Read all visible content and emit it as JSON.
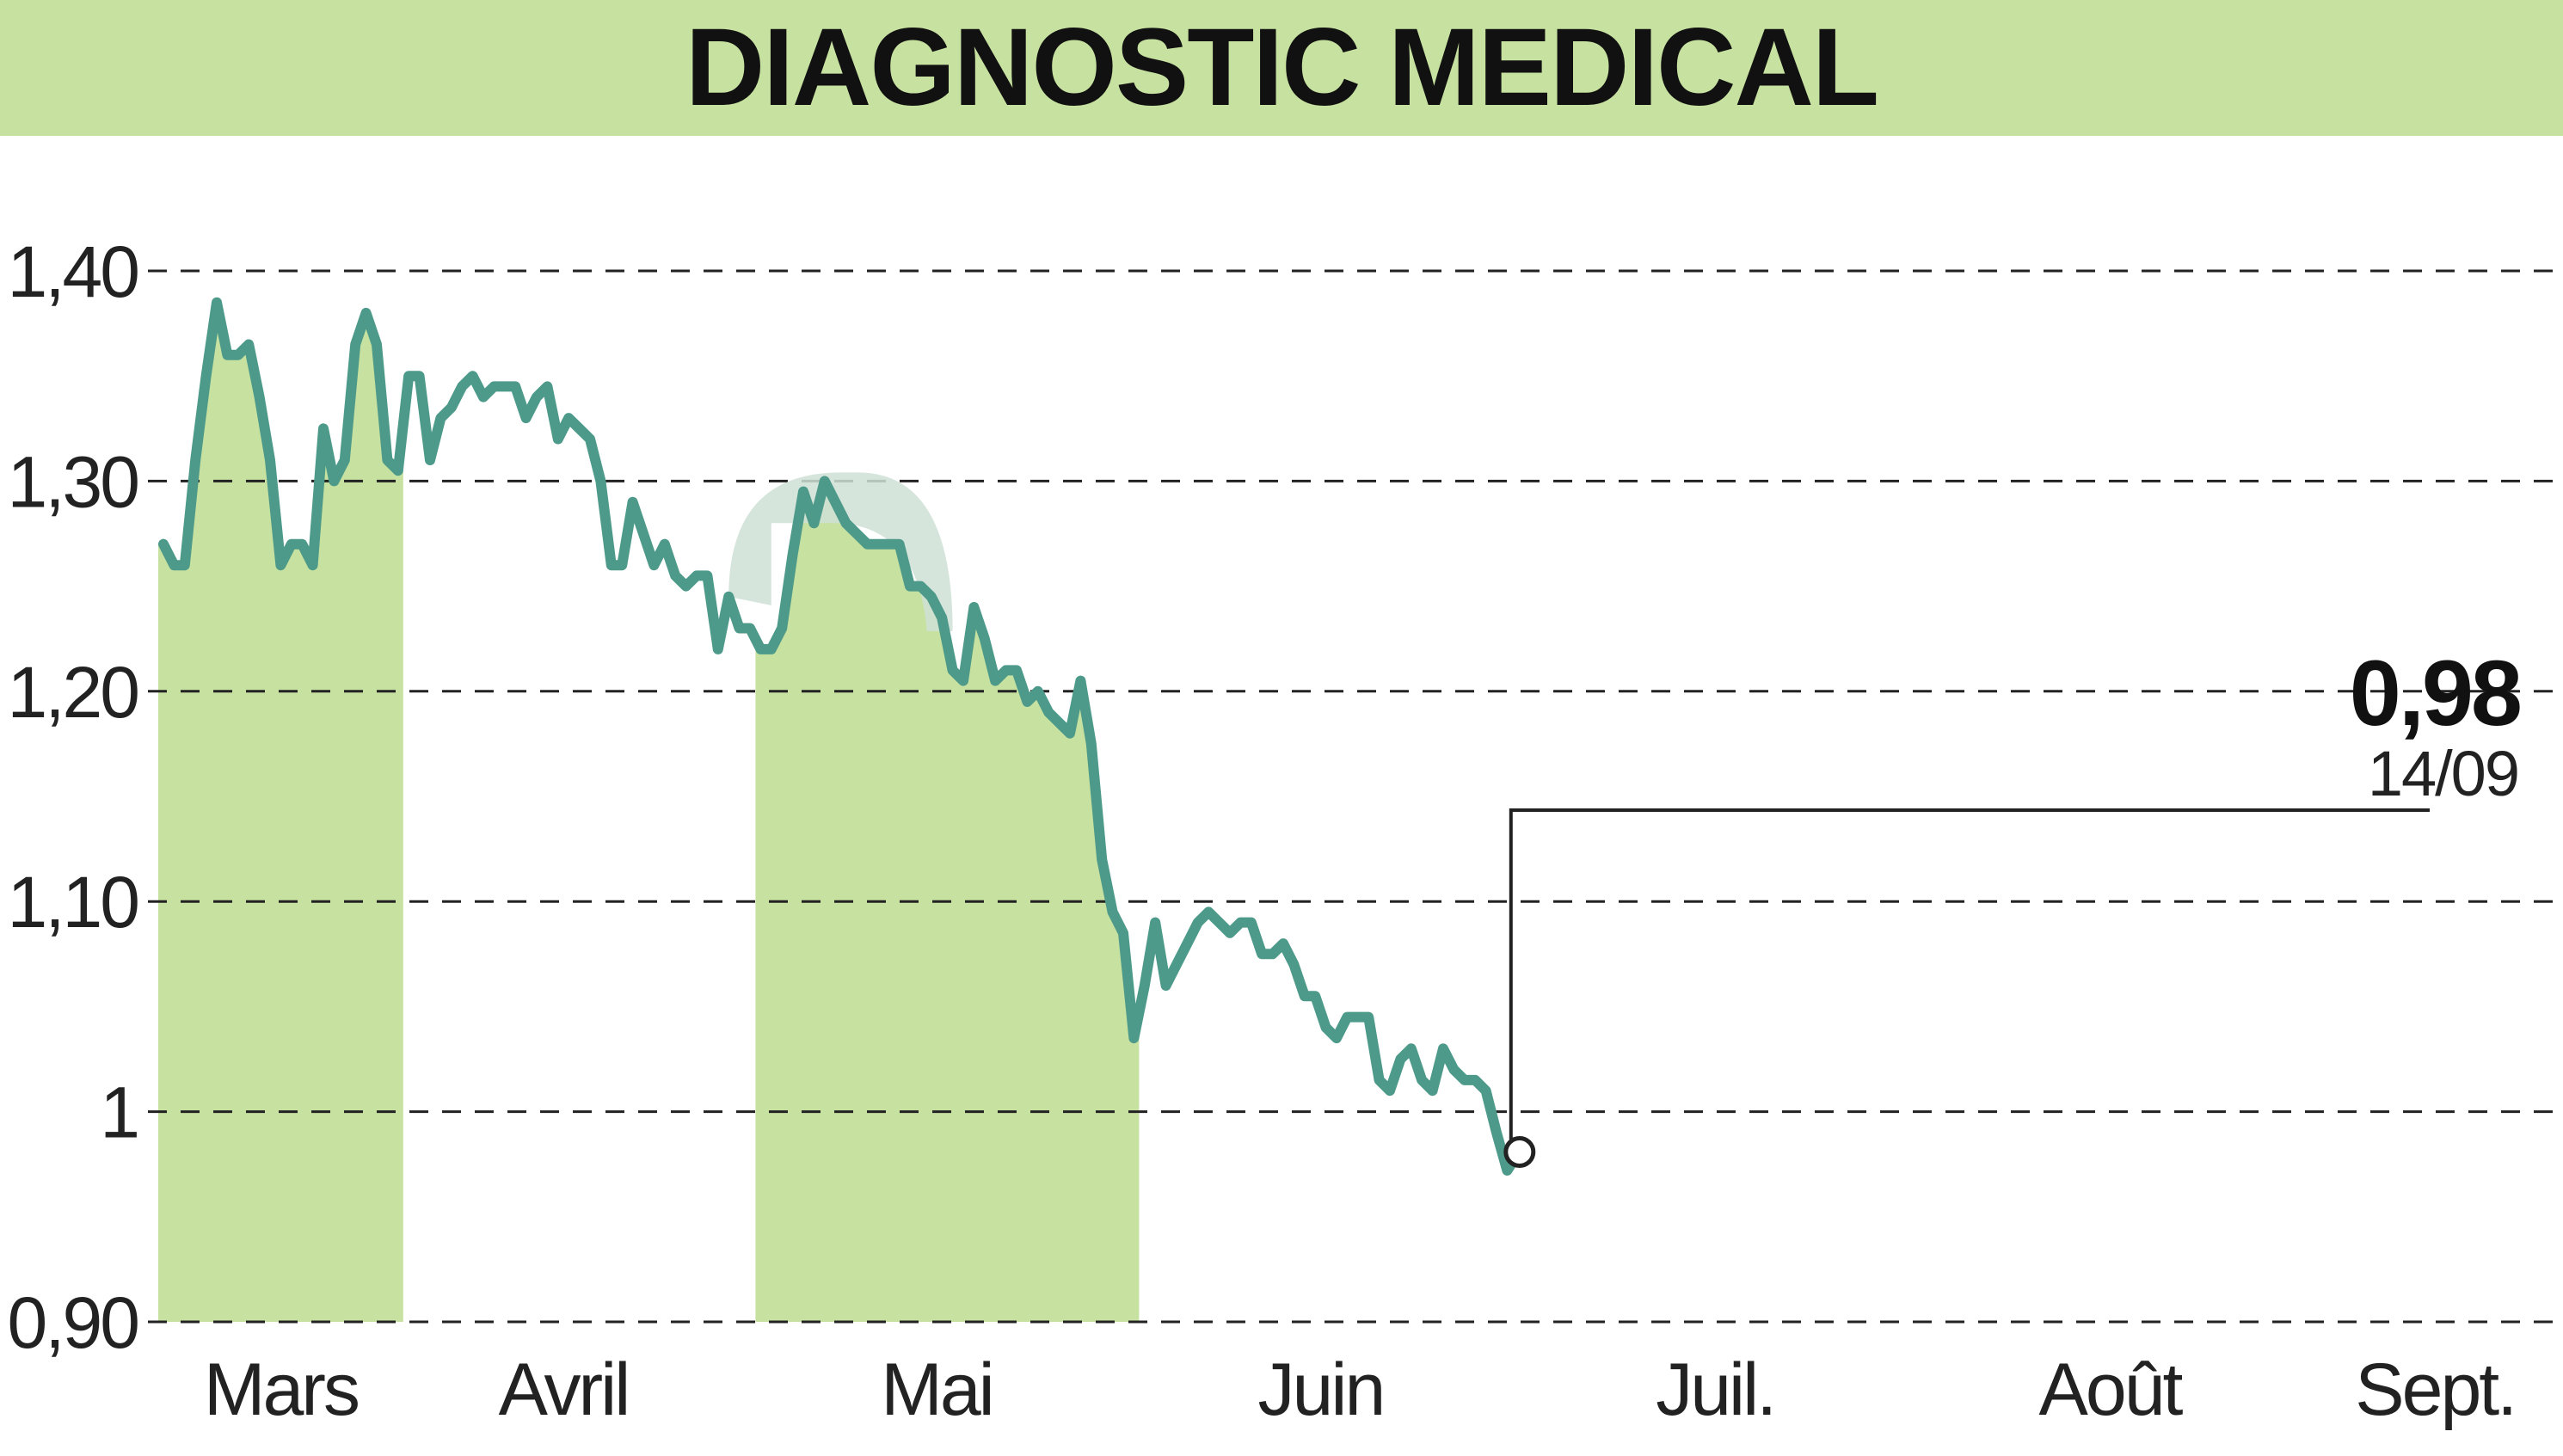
{
  "header": {
    "title": "DIAGNOSTIC MEDICAL"
  },
  "colors": {
    "band": "#c7e1a0",
    "line": "#4d9a8a",
    "grid": "#222222",
    "shadow": "#cfe0d6"
  },
  "chart_data": {
    "type": "line",
    "title": "DIAGNOSTIC MEDICAL",
    "xlabel": "",
    "ylabel": "",
    "ylim": [
      0.9,
      1.4
    ],
    "y_ticks": [
      {
        "value": 1.4,
        "label": "1,40"
      },
      {
        "value": 1.3,
        "label": "1,30"
      },
      {
        "value": 1.2,
        "label": "1,20"
      },
      {
        "value": 1.1,
        "label": "1,10"
      },
      {
        "value": 1.0,
        "label": "1"
      },
      {
        "value": 0.9,
        "label": "0,90"
      }
    ],
    "grid": "horizontal-dashed",
    "months": [
      {
        "label": "Mars",
        "start": 0,
        "end": 22,
        "shaded": true,
        "label_at": 11
      },
      {
        "label": "Avril",
        "start": 22,
        "end": 56,
        "shaded": false,
        "label_at": 37.5
      },
      {
        "label": "Mai",
        "start": 56,
        "end": 91,
        "shaded": true,
        "label_at": 72.5
      },
      {
        "label": "Juin",
        "start": 91,
        "end": 130,
        "shaded": false,
        "label_at": 108.5
      },
      {
        "label": "Juil.",
        "start": 130,
        "end": 170,
        "shaded": true,
        "label_at": 145.5
      },
      {
        "label": "Août",
        "start": 170,
        "end": 207,
        "shaded": false,
        "label_at": 182.5
      },
      {
        "label": "Sept.",
        "start": 207,
        "end": 223,
        "shaded": true,
        "label_at": 213
      }
    ],
    "series": [
      {
        "values": [
          1.27,
          1.26,
          1.26,
          1.31,
          1.35,
          1.385,
          1.36,
          1.36,
          1.365,
          1.34,
          1.31,
          1.26,
          1.27,
          1.27,
          1.26,
          1.325,
          1.3,
          1.31,
          1.365,
          1.38,
          1.365,
          1.31,
          1.305,
          1.35,
          1.35,
          1.31,
          1.33,
          1.335,
          1.345,
          1.35,
          1.34,
          1.345,
          1.345,
          1.345,
          1.33,
          1.34,
          1.345,
          1.32,
          1.33,
          1.325,
          1.32,
          1.3,
          1.26,
          1.26,
          1.29,
          1.275,
          1.26,
          1.27,
          1.255,
          1.25,
          1.255,
          1.255,
          1.22,
          1.245,
          1.23,
          1.23,
          1.22,
          1.22,
          1.23,
          1.265,
          1.295,
          1.28,
          1.3,
          1.29,
          1.28,
          1.275,
          1.27,
          1.27,
          1.27,
          1.27,
          1.25,
          1.25,
          1.245,
          1.235,
          1.21,
          1.205,
          1.24,
          1.225,
          1.205,
          1.21,
          1.21,
          1.195,
          1.2,
          1.19,
          1.185,
          1.18,
          1.205,
          1.175,
          1.12,
          1.095,
          1.085,
          1.035,
          1.06,
          1.09,
          1.06,
          1.07,
          1.08,
          1.09,
          1.095,
          1.09,
          1.085,
          1.09,
          1.09,
          1.075,
          1.075,
          1.08,
          1.07,
          1.055,
          1.055,
          1.04,
          1.035,
          1.045,
          1.045,
          1.045,
          1.015,
          1.01,
          1.025,
          1.03,
          1.015,
          1.01,
          1.03,
          1.02,
          1.015,
          1.015,
          1.01,
          0.99,
          0.972,
          0.98
        ]
      }
    ],
    "annotation": {
      "value_label": "0,98",
      "date_label": "14/09"
    }
  }
}
